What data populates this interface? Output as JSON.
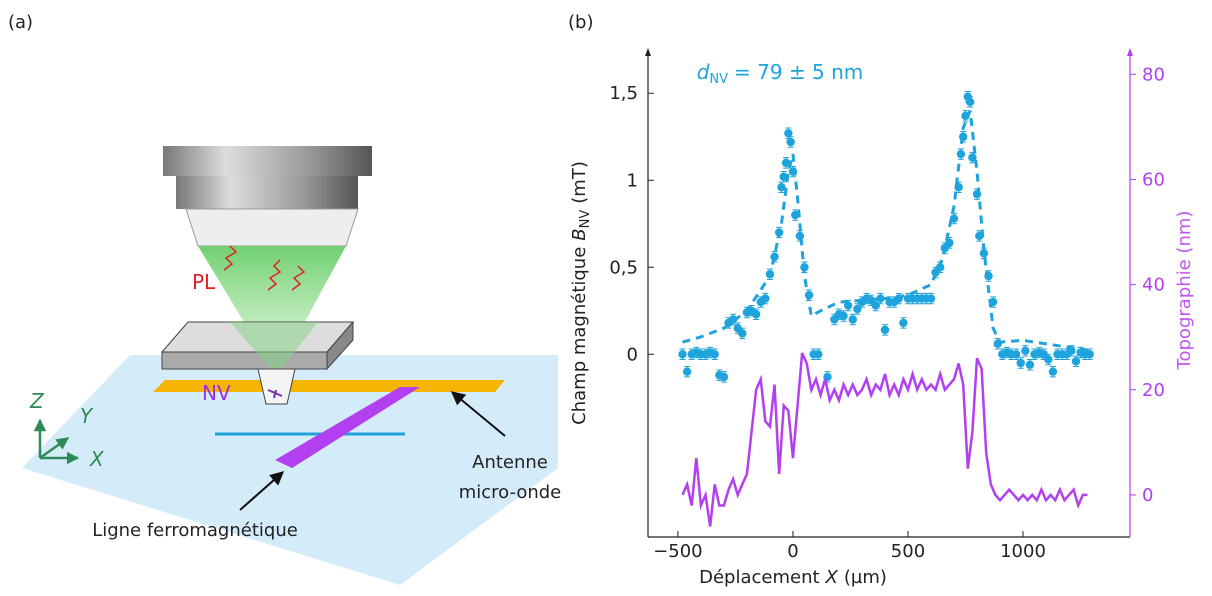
{
  "panel_labels": [
    "(a)",
    "(b)"
  ],
  "diagram": {
    "pl": "PL",
    "nv": "NV",
    "axis_z": "Z",
    "axis_y": "Y",
    "axis_x": "X",
    "antenna": [
      "Antenne",
      "micro-onde"
    ],
    "ferro_line": "Ligne ferromagnétique"
  },
  "chart_data": {
    "type": "line",
    "annotation": {
      "symbol": "d",
      "subscript": "NV",
      "text": "= 79 ± 5 nm"
    },
    "xlabel": {
      "text": "Déplacement",
      "symbol": "X",
      "unit": "(µm)"
    },
    "ylabel": {
      "text": "Champ magnétique",
      "symbol": "B",
      "subscript": "NV",
      "unit": "(mT)"
    },
    "y2label": "Topographie (nm)",
    "xlim": [
      -630,
      1465
    ],
    "ylim": [
      -1.05,
      1.76
    ],
    "y2lim": [
      -8,
      85
    ],
    "xticks": [
      {
        "value": -500,
        "label": "−500"
      },
      0,
      500,
      1000
    ],
    "yticks": [
      0,
      {
        "value": 0.5,
        "label": "0,5"
      },
      1,
      {
        "value": 1.5,
        "label": "1,5"
      }
    ],
    "y2ticks": [
      0,
      20,
      40,
      60,
      80
    ],
    "series": [
      {
        "type": "scatter",
        "color": "#1ea3dc",
        "x": [
          -480,
          -460,
          -440,
          -420,
          -400,
          -380,
          -360,
          -340,
          -320,
          -300,
          -280,
          -260,
          -240,
          -220,
          -200,
          -180,
          -160,
          -140,
          -120,
          -100,
          -80,
          -60,
          -50,
          -40,
          -30,
          -20,
          -10,
          0,
          10,
          30,
          50,
          70,
          90,
          110,
          150,
          180,
          200,
          220,
          240,
          260,
          280,
          300,
          320,
          340,
          360,
          380,
          400,
          420,
          440,
          460,
          480,
          500,
          520,
          540,
          560,
          580,
          600,
          620,
          640,
          660,
          680,
          700,
          720,
          730,
          740,
          750,
          760,
          770,
          780,
          800,
          810,
          830,
          850,
          870,
          890,
          910,
          930,
          950,
          970,
          990,
          1010,
          1030,
          1050,
          1070,
          1090,
          1110,
          1130,
          1150,
          1170,
          1190,
          1210,
          1230,
          1250,
          1270,
          1290
        ],
        "values": [
          0,
          -0.1,
          0,
          0.01,
          0,
          0,
          0.01,
          0,
          -0.12,
          -0.13,
          0.18,
          0.2,
          0.15,
          0.12,
          0.24,
          0.25,
          0.23,
          0.3,
          0.32,
          0.46,
          0.56,
          0.7,
          0.96,
          1.02,
          1.1,
          1.27,
          1.22,
          1.05,
          0.8,
          0.68,
          0.5,
          0.34,
          0,
          0,
          -0.13,
          0.2,
          0.23,
          0.22,
          0.28,
          0.2,
          0.26,
          0.3,
          0.32,
          0.31,
          0.28,
          0.32,
          0.14,
          0.3,
          0.3,
          0.32,
          0.18,
          0.32,
          0.32,
          0.32,
          0.32,
          0.32,
          0.32,
          0.47,
          0.5,
          0.61,
          0.64,
          0.78,
          0.96,
          1.15,
          1.25,
          1.37,
          1.48,
          1.45,
          1.13,
          0.92,
          0.68,
          0.58,
          0.45,
          0.3,
          0.06,
          0,
          0.01,
          0,
          0,
          -0.05,
          0.02,
          -0.06,
          0,
          0.01,
          0,
          -0.03,
          -0.1,
          0,
          0,
          0,
          0.02,
          -0.04,
          0.01,
          0,
          0
        ],
        "errors": [
          0.03,
          0.03,
          0.03,
          0.03,
          0.03,
          0.03,
          0.03,
          0.03,
          0.03,
          0.03,
          0.03,
          0.03,
          0.03,
          0.03,
          0.03,
          0.03,
          0.03,
          0.03,
          0.03,
          0.03,
          0.03,
          0.03,
          0.03,
          0.03,
          0.03,
          0.03,
          0.03,
          0.03,
          0.03,
          0.03,
          0.03,
          0.03,
          0.03,
          0.03,
          0.03,
          0.03,
          0.03,
          0.03,
          0.03,
          0.03,
          0.03,
          0.03,
          0.03,
          0.03,
          0.03,
          0.03,
          0.03,
          0.03,
          0.03,
          0.03,
          0.03,
          0.03,
          0.03,
          0.03,
          0.03,
          0.03,
          0.03,
          0.03,
          0.03,
          0.03,
          0.03,
          0.03,
          0.03,
          0.03,
          0.03,
          0.03,
          0.03,
          0.03,
          0.03,
          0.03,
          0.03,
          0.03,
          0.03,
          0.03,
          0.03,
          0.03,
          0.03,
          0.03,
          0.03,
          0.03,
          0.03,
          0.03,
          0.03,
          0.03,
          0.03,
          0.03,
          0.03,
          0.03,
          0.03,
          0.03,
          0.03,
          0.03,
          0.03,
          0.03,
          0.03
        ]
      },
      {
        "type": "line",
        "dashed": true,
        "color": "#1ea3dc",
        "x": [
          -480,
          -400,
          -300,
          -200,
          -100,
          -50,
          -20,
          0,
          20,
          50,
          80,
          120,
          200,
          300,
          400,
          500,
          600,
          650,
          700,
          740,
          770,
          800,
          830,
          870,
          900,
          1000,
          1100,
          1200,
          1300
        ],
        "values": [
          0.07,
          0.1,
          0.15,
          0.25,
          0.45,
          0.75,
          1.05,
          1.15,
          0.9,
          0.45,
          0.22,
          0.25,
          0.3,
          0.31,
          0.32,
          0.34,
          0.4,
          0.55,
          0.85,
          1.3,
          1.4,
          1.05,
          0.6,
          0.15,
          0.07,
          0.08,
          0.06,
          0.04,
          0.02
        ]
      },
      {
        "type": "line",
        "axis": "y2",
        "color": "#b23ff0",
        "x": [
          -480,
          -460,
          -440,
          -420,
          -400,
          -380,
          -360,
          -340,
          -320,
          -300,
          -280,
          -260,
          -240,
          -220,
          -200,
          -180,
          -160,
          -140,
          -120,
          -100,
          -80,
          -60,
          -40,
          -20,
          0,
          20,
          40,
          60,
          80,
          100,
          120,
          140,
          160,
          180,
          200,
          220,
          240,
          260,
          280,
          300,
          320,
          340,
          360,
          380,
          400,
          420,
          440,
          460,
          480,
          500,
          520,
          540,
          560,
          580,
          600,
          620,
          640,
          660,
          680,
          700,
          720,
          740,
          760,
          780,
          800,
          820,
          840,
          860,
          880,
          900,
          920,
          940,
          960,
          980,
          1000,
          1020,
          1040,
          1060,
          1080,
          1100,
          1120,
          1140,
          1160,
          1180,
          1200,
          1220,
          1240,
          1260,
          1280
        ],
        "values": [
          0,
          2,
          -2,
          7,
          -2,
          0,
          -6,
          2,
          -2,
          -2,
          1,
          3,
          0,
          2,
          4,
          12,
          20,
          22,
          14,
          13,
          21,
          4,
          17,
          16,
          7,
          17,
          27,
          25,
          20,
          22,
          19,
          22,
          18,
          20,
          18,
          21,
          19,
          21,
          19,
          20,
          22,
          19,
          21,
          20,
          23,
          19,
          21,
          19,
          22,
          20,
          23,
          20,
          22,
          20,
          21,
          20,
          23,
          20,
          21,
          22,
          25,
          21,
          5,
          12,
          26,
          24,
          8,
          2,
          0,
          -1,
          0,
          1,
          0,
          -1,
          0,
          -1,
          0,
          -1,
          1,
          -1,
          0,
          -1,
          1,
          -1,
          0,
          1,
          -2,
          0,
          0
        ]
      }
    ]
  }
}
